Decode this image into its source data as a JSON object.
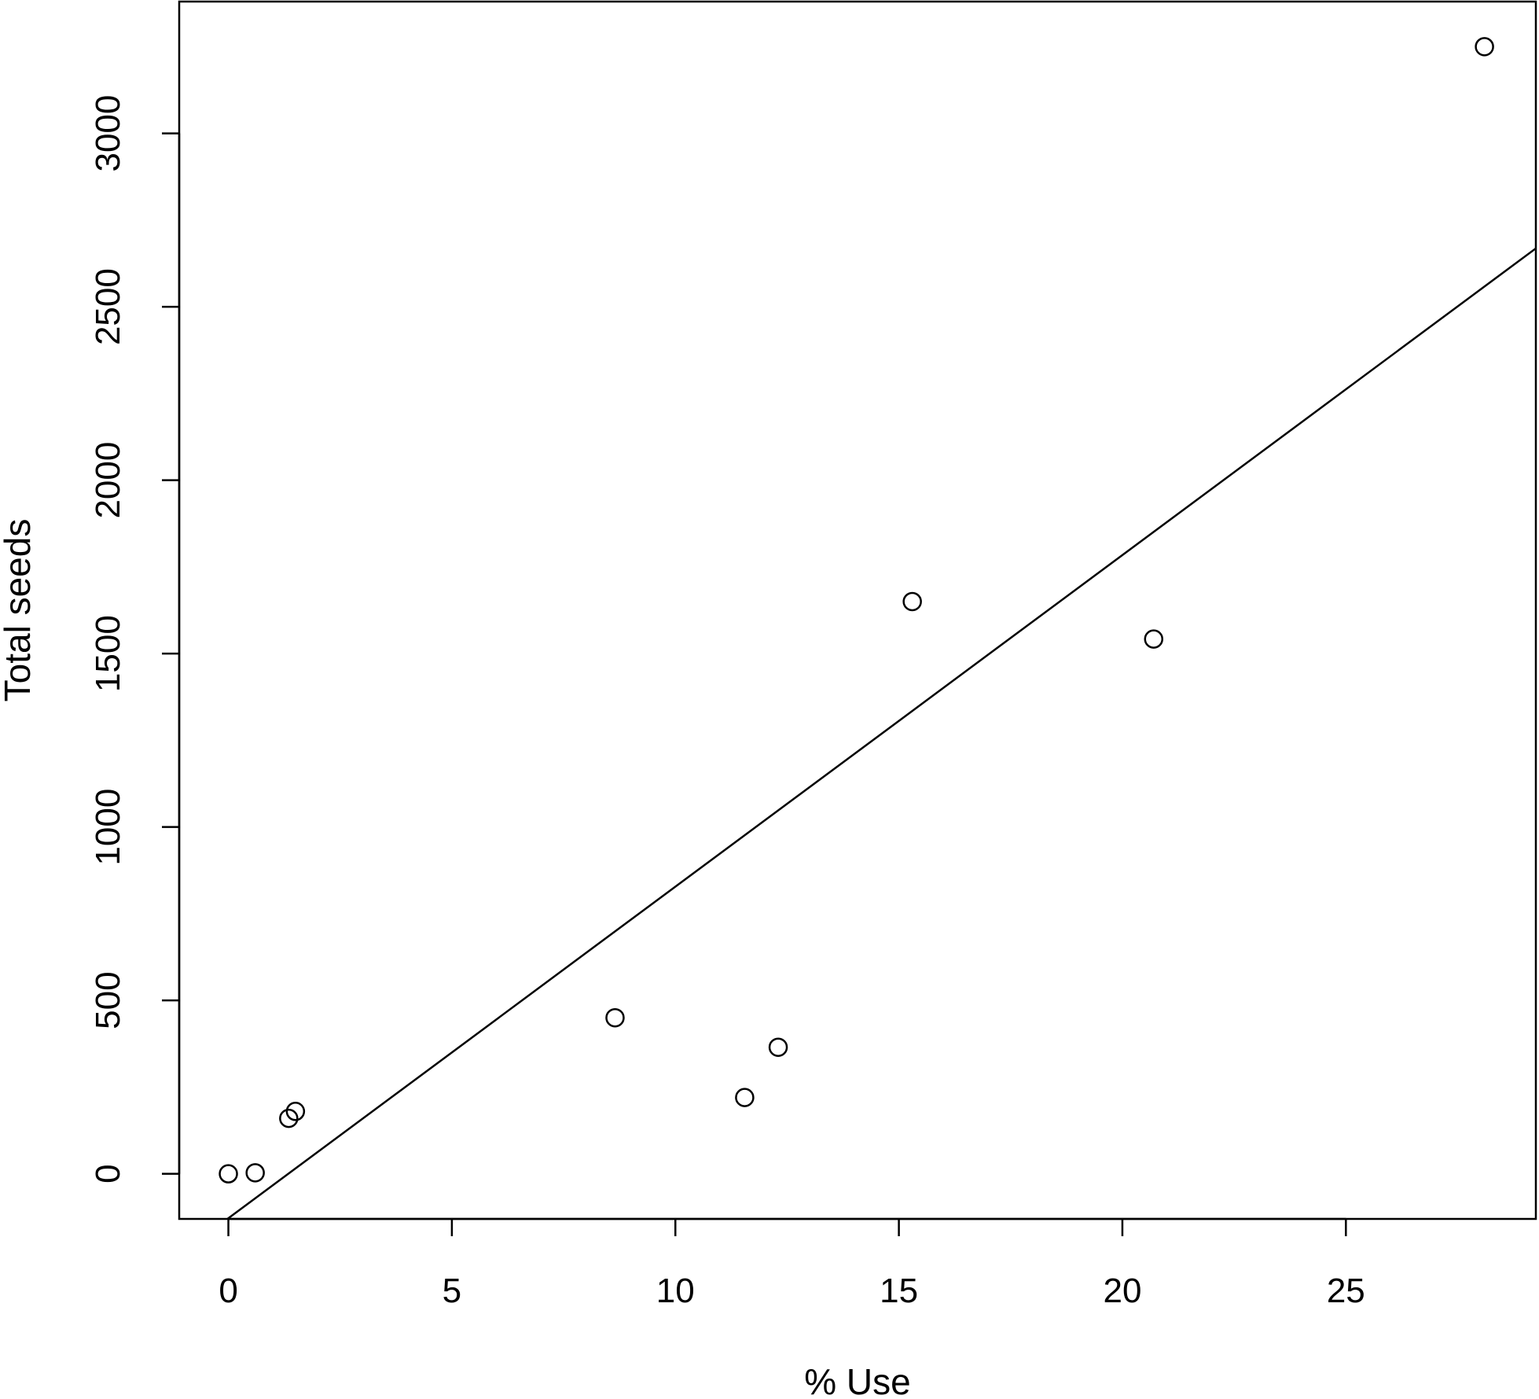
{
  "chart_data": {
    "type": "scatter",
    "xlabel": "% Use",
    "ylabel": "Total seeds",
    "xlim": [
      -1.1,
      29.25
    ],
    "ylim": [
      -130,
      3380
    ],
    "x_ticks": [
      0,
      5,
      10,
      15,
      20,
      25
    ],
    "x_tick_labels": [
      "0",
      "5",
      "10",
      "15",
      "20",
      "25"
    ],
    "y_ticks": [
      0,
      500,
      1000,
      1500,
      2000,
      2500,
      3000
    ],
    "y_tick_labels": [
      "0",
      "500",
      "1000",
      "1500",
      "2000",
      "2500",
      "3000"
    ],
    "grid": false,
    "legend": "none",
    "marker": "open-circle",
    "color": "#000000",
    "points": [
      {
        "x": 0.0,
        "y": 0
      },
      {
        "x": 0.6,
        "y": 3
      },
      {
        "x": 1.35,
        "y": 160
      },
      {
        "x": 1.5,
        "y": 180
      },
      {
        "x": 8.65,
        "y": 450
      },
      {
        "x": 11.55,
        "y": 220
      },
      {
        "x": 12.3,
        "y": 365
      },
      {
        "x": 15.3,
        "y": 1650
      },
      {
        "x": 20.7,
        "y": 1542
      },
      {
        "x": 28.1,
        "y": 3250
      }
    ],
    "fit_line": {
      "type": "linear",
      "intercept": -128,
      "slope": 95.6
    }
  }
}
